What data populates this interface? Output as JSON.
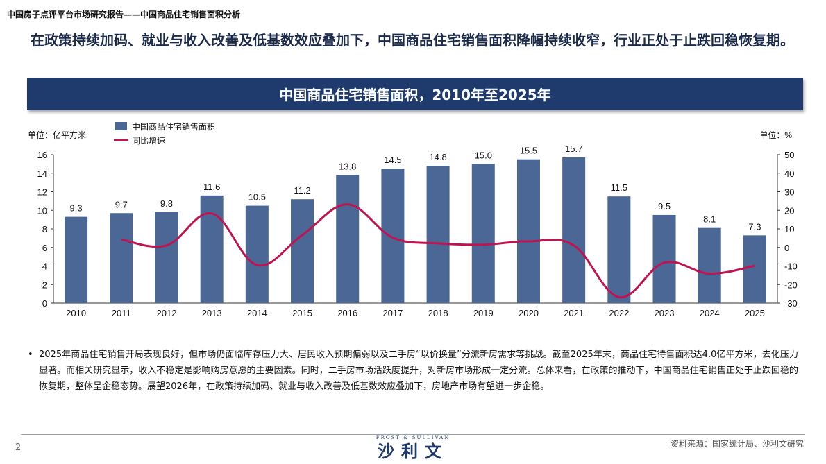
{
  "header": {
    "title": "中国房子点评平台市场研究报告——中国商品住宅销售面积分析"
  },
  "headline": "在政策持续加码、就业与收入改善及低基数效应叠加下，中国商品住宅销售面积降幅持续收窄，行业正处于止跌回稳恢复期。",
  "banner": {
    "title": "中国商品住宅销售面积，2010年至2025年"
  },
  "chart_data": {
    "type": "bar",
    "title": "中国商品住宅销售面积，2010年至2025年",
    "categories": [
      "2010",
      "2011",
      "2012",
      "2013",
      "2014",
      "2015",
      "2016",
      "2017",
      "2018",
      "2019",
      "2020",
      "2021",
      "2022",
      "2023",
      "2024",
      "2025"
    ],
    "series": [
      {
        "name": "中国商品住宅销售面积",
        "type": "bar",
        "axis": "left",
        "color": "#4a6795",
        "values": [
          9.3,
          9.7,
          9.8,
          11.6,
          10.5,
          11.2,
          13.8,
          14.5,
          14.8,
          15.0,
          15.5,
          15.7,
          11.5,
          9.5,
          8.1,
          7.3
        ],
        "labels": [
          "9.3",
          "9.7",
          "9.8",
          "11.6",
          "10.5",
          "11.2",
          "13.8",
          "14.5",
          "14.8",
          "15.0",
          "15.5",
          "15.7",
          "11.5",
          "9.5",
          "8.1",
          "7.3"
        ]
      },
      {
        "name": "同比增速",
        "type": "line",
        "axis": "right",
        "color": "#c0134f",
        "values": [
          null,
          4.3,
          1.1,
          18.3,
          -9.5,
          6.7,
          23.2,
          5.3,
          2.2,
          1.5,
          3.3,
          1.1,
          -26.8,
          -8.2,
          -14.1,
          -9.9
        ]
      }
    ],
    "y_left": {
      "label": "单位：亿平方米",
      "ylim": [
        0,
        16
      ],
      "ticks": [
        "0",
        "2",
        "4",
        "6",
        "8",
        "10",
        "12",
        "14",
        "16"
      ]
    },
    "y_right": {
      "label": "单位：%",
      "ylim": [
        -30,
        50
      ],
      "ticks": [
        "-30",
        "-20",
        "-10",
        "0",
        "10",
        "20",
        "30",
        "40",
        "50"
      ]
    },
    "grid": false,
    "legend_position": "top-left"
  },
  "bullet": "2025年商品住宅销售开局表现良好，但市场仍面临库存压力大、居民收入预期偏弱以及二手房“以价换量”分流新房需求等挑战。截至2025年末，商品住宅待售面积达4.0亿平方米，去化压力显著。而相关研究显示，收入不稳定是影响购房意愿的主要因素。同时，二手房市场活跃度提升，对新房市场形成一定分流。总体来看，在政策的推动下，中国商品住宅销售正处于止跌回稳的恢复期，整体呈企稳态势。展望2026年，在政策持续加码、就业与收入改善及低基数效应叠加下，房地产市场有望进一步企稳。",
  "footer": {
    "page_number": "2",
    "logo_top": "FROST & SULLIVAN",
    "logo_main": "沙利文",
    "source": "资料来源：国家统计局、沙利文研究"
  }
}
